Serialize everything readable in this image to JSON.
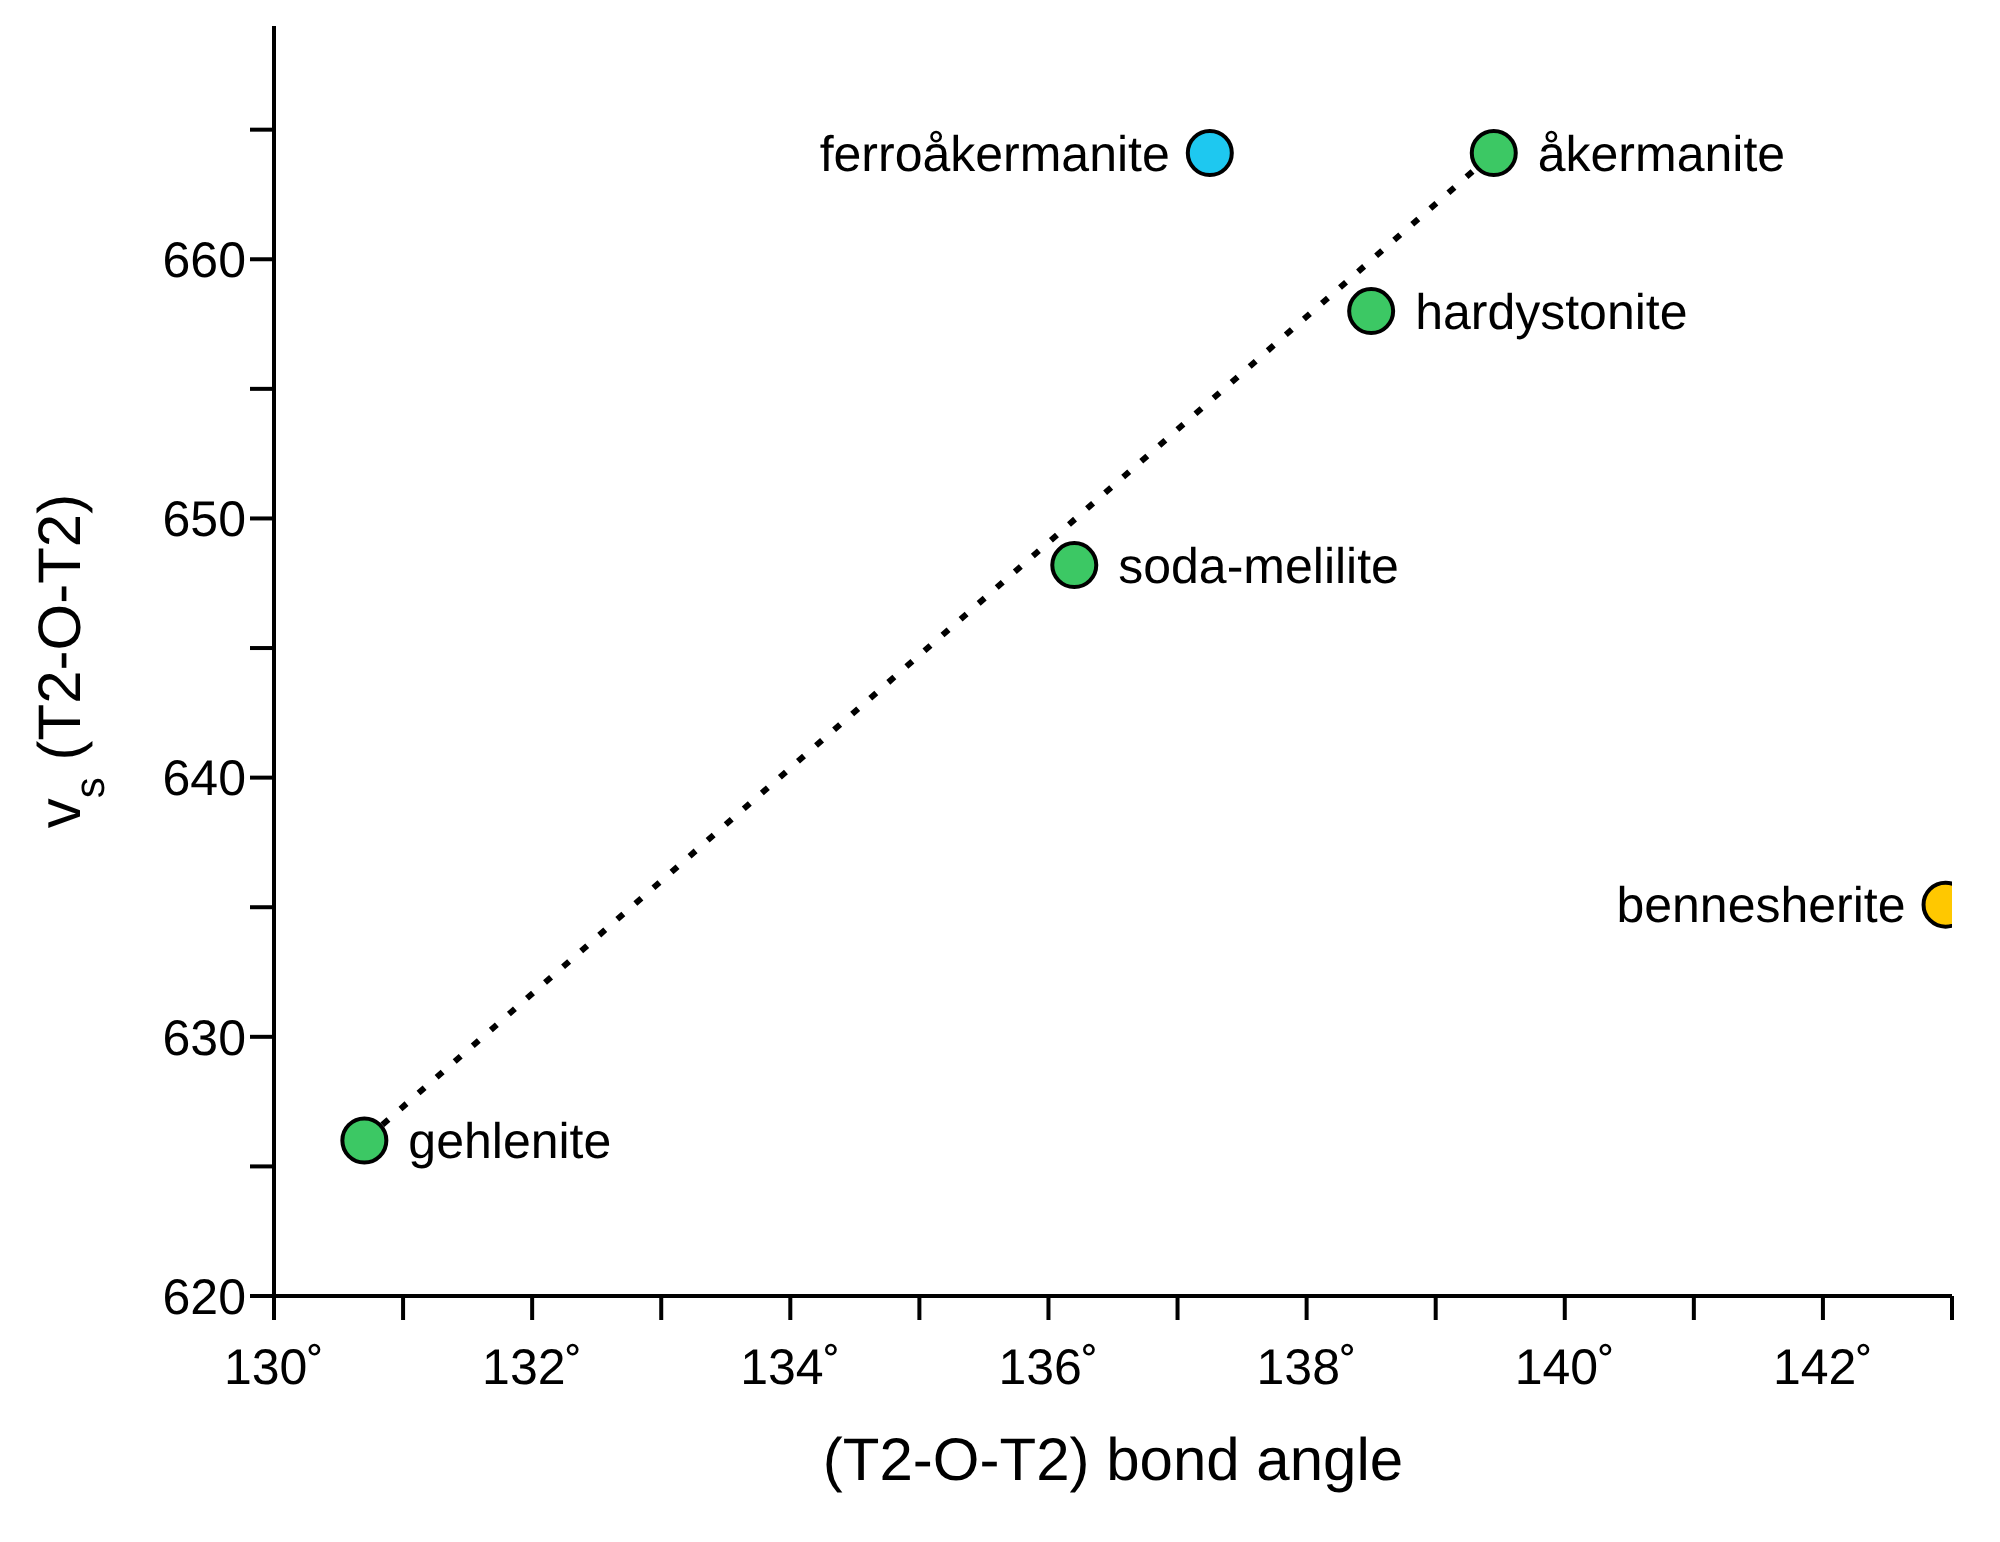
{
  "chart_data": {
    "type": "scatter",
    "xlabel": "(T2-O-T2) bond angle",
    "ylabel": "v$_{s}$ (T2-O-T2)",
    "xlim": [
      130,
      143
    ],
    "ylim": [
      620,
      669
    ],
    "xticks": [
      {
        "value": 130,
        "label": "130˚"
      },
      {
        "value": 131,
        "label": null
      },
      {
        "value": 132,
        "label": "132˚"
      },
      {
        "value": 133,
        "label": null
      },
      {
        "value": 134,
        "label": "134˚"
      },
      {
        "value": 135,
        "label": null
      },
      {
        "value": 136,
        "label": "136˚"
      },
      {
        "value": 137,
        "label": null
      },
      {
        "value": 138,
        "label": "138˚"
      },
      {
        "value": 139,
        "label": null
      },
      {
        "value": 140,
        "label": "140˚"
      },
      {
        "value": 141,
        "label": null
      },
      {
        "value": 142,
        "label": "142˚"
      },
      {
        "value": 143,
        "label": null
      }
    ],
    "yticks": [
      620,
      {
        "value": 625,
        "label": null
      },
      630,
      {
        "value": 635,
        "label": null
      },
      640,
      {
        "value": 645,
        "label": null
      },
      650,
      {
        "value": 655,
        "label": null
      },
      660,
      {
        "value": 665,
        "label": null
      }
    ],
    "grid": false,
    "legend": false,
    "series": [
      {
        "type": "line",
        "x": [
          130.7,
          139.45
        ],
        "values": [
          626,
          664.1
        ],
        "color": "#000000",
        "line_style": "dotted",
        "marker": "none"
      },
      {
        "x": [
          130.7,
          136.2,
          138.5,
          139.45,
          137.25,
          142.95
        ],
        "values": [
          626,
          648.2,
          658,
          664.1,
          664.1,
          635.1
        ],
        "colors": [
          "#3cc864",
          "#3cc864",
          "#3cc864",
          "#3cc864",
          "#1ec8f0",
          "#ffc800"
        ],
        "marker": "circle"
      }
    ],
    "annotations": [
      {
        "text": "gehlenite",
        "x": 130.7,
        "y": 626
      },
      {
        "text": "soda-melilite",
        "x": 136.2,
        "y": 648.2
      },
      {
        "text": "hardystonite",
        "x": 138.5,
        "y": 658
      },
      {
        "text": "åkermanite",
        "x": 139.45,
        "y": 664.1
      },
      {
        "text": "ferroåkermanite",
        "x": 137.25,
        "y": 664.1
      },
      {
        "text": "bennesherite",
        "x": 142.95,
        "y": 635.1
      }
    ]
  }
}
